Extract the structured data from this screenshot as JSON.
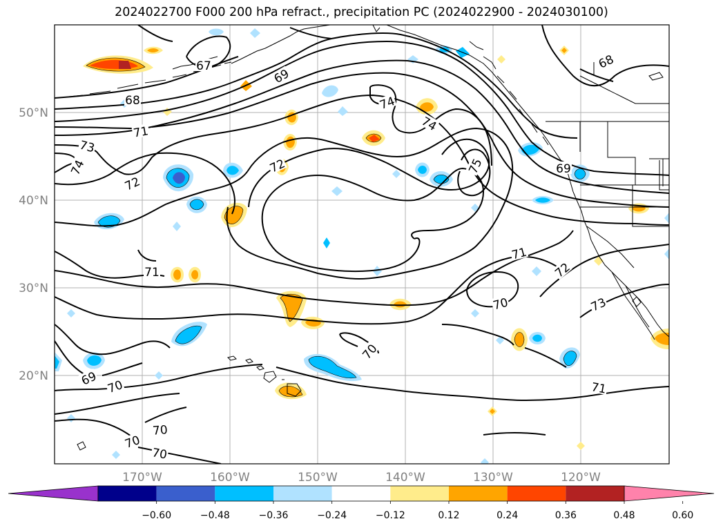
{
  "title": "2024022700 F000 200 hPa refract., precipitation PC (2024022900 - 2024030100)",
  "map": {
    "region": "North-east Pacific",
    "lon_range": [
      -180,
      -110
    ],
    "lat_range": [
      10,
      60
    ],
    "lon_ticks": [
      "170°W",
      "160°W",
      "150°W",
      "140°W",
      "130°W",
      "120°W"
    ],
    "lat_ticks": [
      "50°N",
      "40°N",
      "30°N",
      "20°N"
    ],
    "gridlines": true,
    "contour_variable": "200 hPa refractivity",
    "contour_labels": [
      "67",
      "68",
      "68",
      "69",
      "69",
      "69",
      "70",
      "70",
      "70",
      "70",
      "70",
      "70",
      "71",
      "71",
      "71",
      "71",
      "72",
      "72",
      "72",
      "73",
      "73",
      "74",
      "74",
      "74",
      "75"
    ],
    "shaded_variable": "precipitation PC"
  },
  "colorbar": {
    "ticks": [
      "−0.60",
      "−0.48",
      "−0.36",
      "−0.24",
      "−0.12",
      "0.12",
      "0.24",
      "0.36",
      "0.48",
      "0.60"
    ],
    "bin_colors": [
      "#9932cc",
      "#00008b",
      "#3a5fcd",
      "#00bfff",
      "#b0e2ff",
      "#ffffff",
      "#ffec8b",
      "#ffa500",
      "#ff4500",
      "#b22222",
      "#ff82ab"
    ],
    "extend": "both"
  },
  "colors": {
    "blue_anomaly": "#00bfff",
    "light_blue_anomaly": "#b0e2ff",
    "dark_blue_anomaly": "#3a5fcd",
    "yellow_anomaly": "#ffec8b",
    "orange_anomaly": "#ffa500",
    "red_anomaly": "#ff4500",
    "dark_red_anomaly": "#b22222"
  }
}
